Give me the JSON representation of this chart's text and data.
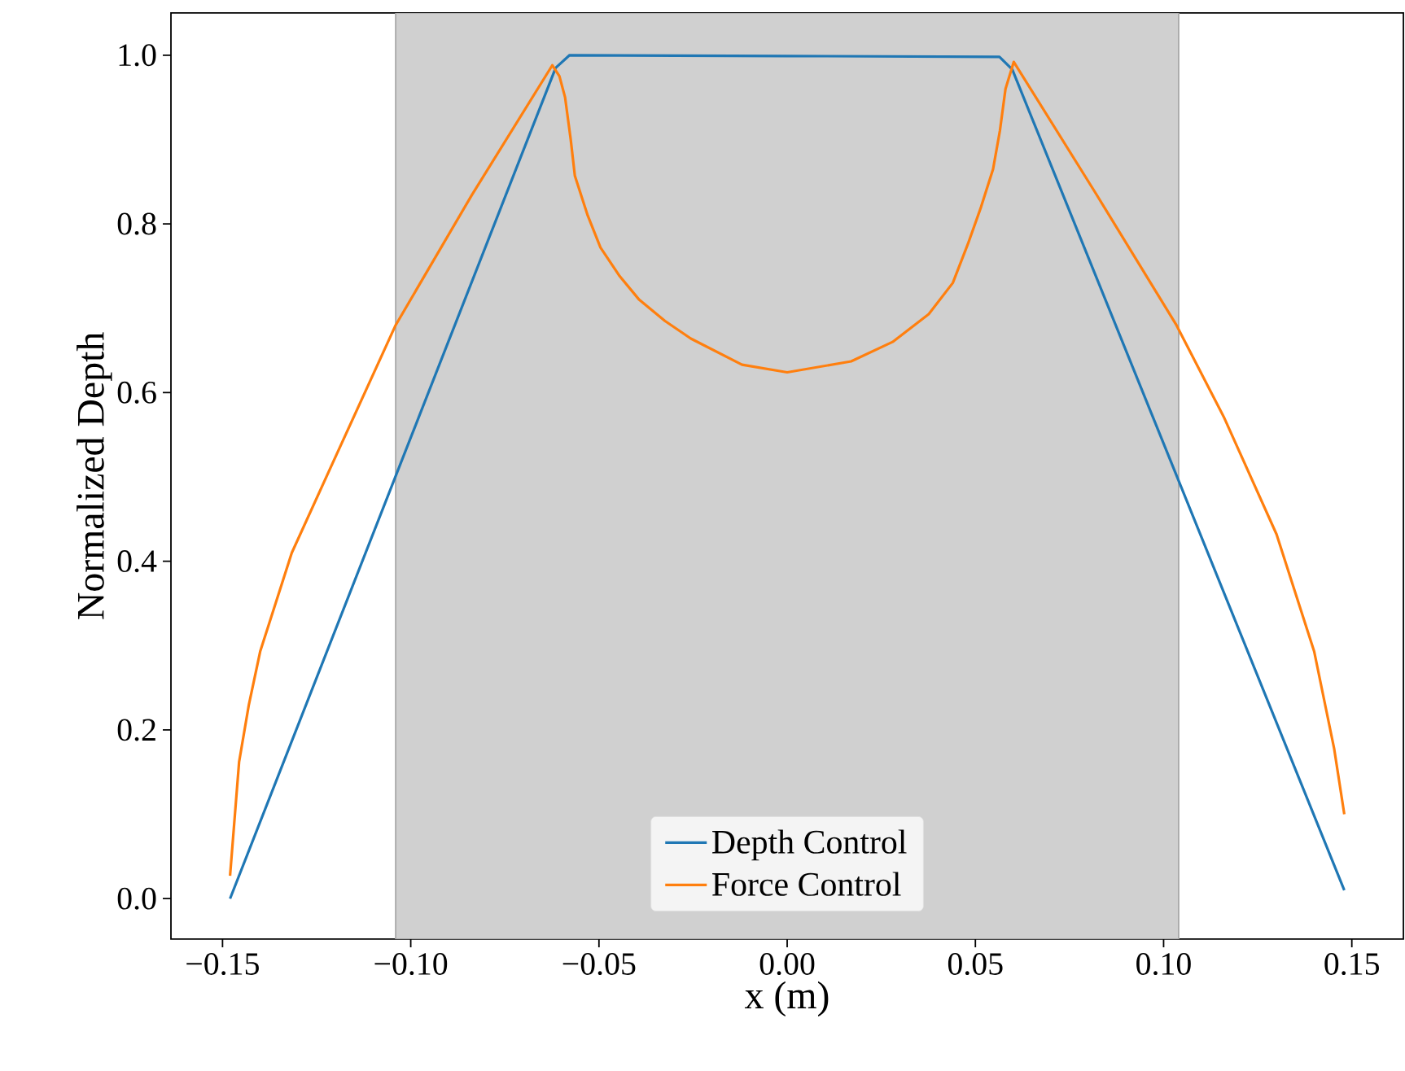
{
  "chart_data": {
    "type": "line",
    "xlabel": "x (m)",
    "ylabel": "Normalized Depth",
    "xlim": [
      -0.1637,
      0.1637
    ],
    "ylim": [
      -0.048,
      1.05
    ],
    "xticks": [
      {
        "value": -0.15,
        "label": "−0.15"
      },
      {
        "value": -0.1,
        "label": "−0.10"
      },
      {
        "value": -0.05,
        "label": "−0.05"
      },
      {
        "value": 0,
        "label": "0.00"
      },
      {
        "value": 0.05,
        "label": "0.05"
      },
      {
        "value": 0.1,
        "label": "0.10"
      },
      {
        "value": 0.15,
        "label": "0.15"
      }
    ],
    "yticks": [
      {
        "value": 0,
        "label": "0.0"
      },
      {
        "value": 0.2,
        "label": "0.2"
      },
      {
        "value": 0.4,
        "label": "0.4"
      },
      {
        "value": 0.6,
        "label": "0.6"
      },
      {
        "value": 0.8,
        "label": "0.8"
      },
      {
        "value": 1,
        "label": "1.0"
      }
    ],
    "bands": [
      {
        "axis": "x",
        "from": -0.104,
        "to": 0.104,
        "color": "#d0d0d0"
      }
    ],
    "legend": "bottom",
    "grid": false,
    "marker": "none",
    "line_style": "solid",
    "series": [
      {
        "name": "Depth Control",
        "color": "#1f77b4",
        "x": [
          -0.148,
          -0.0615,
          -0.0578,
          0,
          0.0564,
          0.0598,
          0.148
        ],
        "values": [
          0,
          0.985,
          1.0,
          0.999,
          0.998,
          0.983,
          0.01
        ]
      },
      {
        "name": "Force Control",
        "color": "#ff7f0e",
        "x": [
          -0.148,
          -0.1456,
          -0.143,
          -0.14,
          -0.1316,
          -0.1214,
          -0.104,
          -0.0838,
          -0.0624,
          -0.0605,
          -0.059,
          -0.0575,
          -0.0564,
          -0.053,
          -0.0496,
          -0.0445,
          -0.0393,
          -0.0325,
          -0.0256,
          -0.012,
          0,
          0.017,
          0.028,
          0.0376,
          0.044,
          0.048,
          0.0515,
          0.0547,
          0.0565,
          0.058,
          0.0602,
          0.082,
          0.1034,
          0.116,
          0.13,
          0.14,
          0.1453,
          0.148
        ],
        "values": [
          0.027,
          0.162,
          0.23,
          0.293,
          0.41,
          0.51,
          0.68,
          0.834,
          0.988,
          0.975,
          0.95,
          0.9,
          0.857,
          0.81,
          0.772,
          0.738,
          0.71,
          0.685,
          0.664,
          0.633,
          0.624,
          0.637,
          0.66,
          0.693,
          0.73,
          0.776,
          0.82,
          0.865,
          0.91,
          0.96,
          0.992,
          0.836,
          0.68,
          0.571,
          0.432,
          0.293,
          0.178,
          0.1
        ]
      }
    ]
  }
}
